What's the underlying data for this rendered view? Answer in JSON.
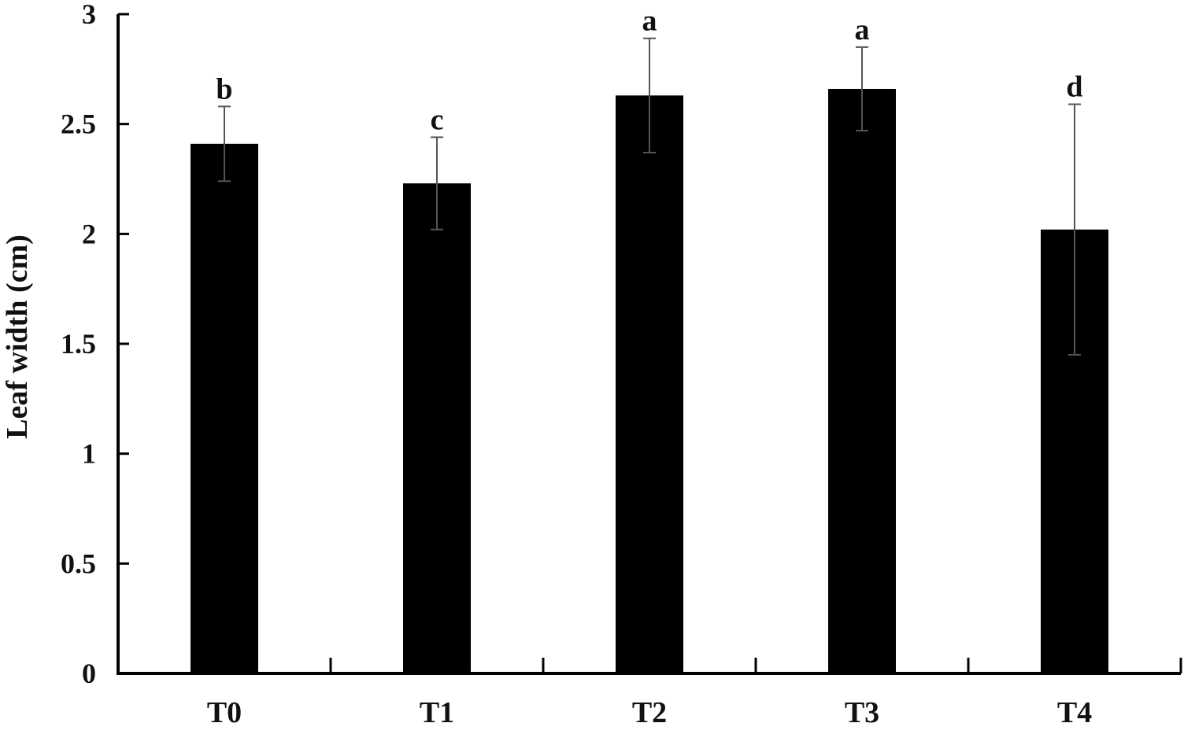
{
  "chart_data": {
    "type": "bar",
    "categories": [
      "T0",
      "T1",
      "T2",
      "T3",
      "T4"
    ],
    "values": [
      2.41,
      2.23,
      2.63,
      2.66,
      2.02
    ],
    "errors": [
      0.17,
      0.21,
      0.26,
      0.19,
      0.57
    ],
    "significance": [
      "b",
      "c",
      "a",
      "a",
      "d"
    ],
    "title": "",
    "xlabel": "",
    "ylabel": "Leaf width (cm)",
    "ylim": [
      0,
      3
    ],
    "yticks": [
      0,
      0.5,
      1,
      1.5,
      2,
      2.5,
      3
    ],
    "ytick_labels": [
      "0",
      "0.5",
      "1",
      "1.5",
      "2",
      "2.5",
      "3"
    ],
    "bar_color": "#000000",
    "error_bar_color": "#555555",
    "grid": false,
    "legend": "none"
  }
}
